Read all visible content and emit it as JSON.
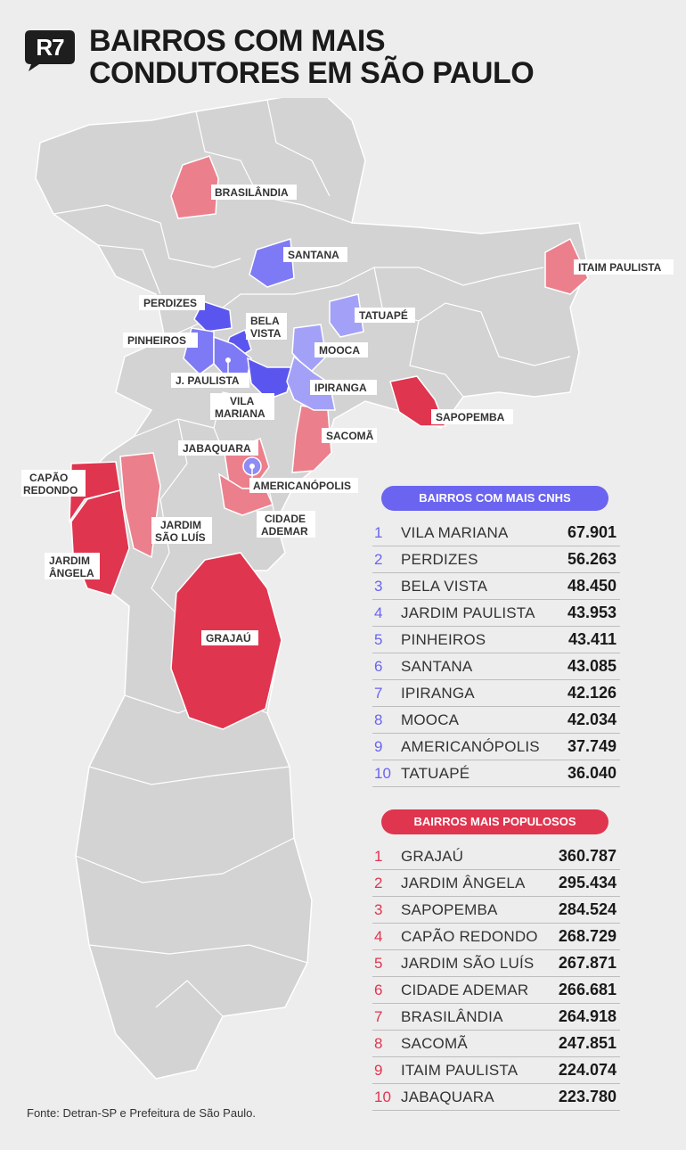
{
  "header": {
    "logo_text": "R7",
    "title_line1": "BAIRROS COM MAIS",
    "title_line2": "CONDUTORES EM SÃO PAULO"
  },
  "colors": {
    "background": "#ededed",
    "map_gray": "#d3d3d3",
    "cnh_dark": "#5b55f0",
    "cnh_mid": "#7e7af5",
    "cnh_light": "#a3a1f7",
    "pop_dark": "#e0354f",
    "pop_light": "#ec7f8c"
  },
  "map": {
    "labels": {
      "brasilandia": "BRASILÂNDIA",
      "santana": "SANTANA",
      "itaim_paulista": "ITAIM PAULISTA",
      "perdizes": "PERDIZES",
      "bela_vista_1": "BELA",
      "bela_vista_2": "VISTA",
      "tatuape": "TATUAPÉ",
      "pinheiros": "PINHEIROS",
      "mooca": "MOOCA",
      "j_paulista": "J. PAULISTA",
      "ipiranga": "IPIRANGA",
      "vila_mariana_1": "VILA",
      "vila_mariana_2": "MARIANA",
      "sapopemba": "SAPOPEMBA",
      "sacoma": "SACOMÃ",
      "jabaquara": "JABAQUARA",
      "capao_redondo_1": "CAPÃO",
      "capao_redondo_2": "REDONDO",
      "americanopolis": "AMERICANÓPOLIS",
      "jardim_sao_luis_1": "JARDIM",
      "jardim_sao_luis_2": "SÃO LUÍS",
      "cidade_ademar_1": "CIDADE",
      "cidade_ademar_2": "ADEMAR",
      "jardim_angela_1": "JARDIM",
      "jardim_angela_2": "ÂNGELA",
      "grajau": "GRAJAÚ"
    }
  },
  "cnh_ranking": {
    "title": "BAIRROS COM MAIS CNHS",
    "items": [
      {
        "rank": "1",
        "name": "VILA MARIANA",
        "value": "67.901"
      },
      {
        "rank": "2",
        "name": "PERDIZES",
        "value": "56.263"
      },
      {
        "rank": "3",
        "name": "BELA VISTA",
        "value": "48.450"
      },
      {
        "rank": "4",
        "name": "JARDIM PAULISTA",
        "value": "43.953"
      },
      {
        "rank": "5",
        "name": "PINHEIROS",
        "value": "43.411"
      },
      {
        "rank": "6",
        "name": "SANTANA",
        "value": "43.085"
      },
      {
        "rank": "7",
        "name": "IPIRANGA",
        "value": "42.126"
      },
      {
        "rank": "8",
        "name": "MOOCA",
        "value": "42.034"
      },
      {
        "rank": "9",
        "name": "AMERICANÓPOLIS",
        "value": "37.749"
      },
      {
        "rank": "10",
        "name": "TATUAPÉ",
        "value": "36.040"
      }
    ]
  },
  "population_ranking": {
    "title": "BAIRROS MAIS POPULOSOS",
    "items": [
      {
        "rank": "1",
        "name": "GRAJAÚ",
        "value": "360.787"
      },
      {
        "rank": "2",
        "name": "JARDIM ÂNGELA",
        "value": "295.434"
      },
      {
        "rank": "3",
        "name": "SAPOPEMBA",
        "value": "284.524"
      },
      {
        "rank": "4",
        "name": "CAPÃO REDONDO",
        "value": "268.729"
      },
      {
        "rank": "5",
        "name": "JARDIM SÃO LUÍS",
        "value": "267.871"
      },
      {
        "rank": "6",
        "name": "CIDADE ADEMAR",
        "value": "266.681"
      },
      {
        "rank": "7",
        "name": "BRASILÂNDIA",
        "value": "264.918"
      },
      {
        "rank": "8",
        "name": "SACOMÃ",
        "value": "247.851"
      },
      {
        "rank": "9",
        "name": "ITAIM PAULISTA",
        "value": "224.074"
      },
      {
        "rank": "10",
        "name": "JABAQUARA",
        "value": "223.780"
      }
    ]
  },
  "source": "Fonte: Detran-SP e Prefeitura de São Paulo."
}
